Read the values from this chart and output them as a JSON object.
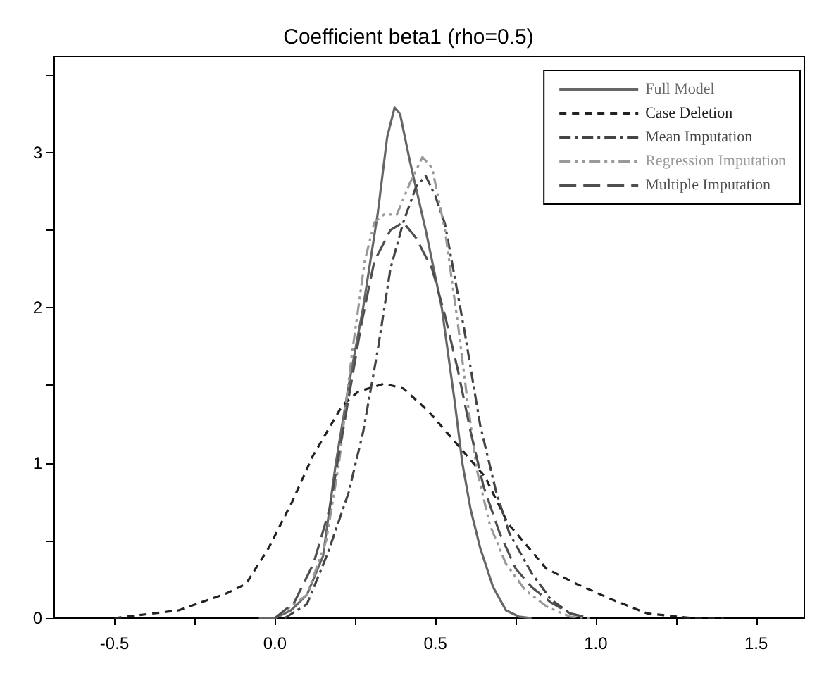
{
  "chart_data": {
    "type": "line",
    "title": "Coefficient beta1 (rho=0.5)",
    "legend": "top right",
    "grid": false,
    "marker": "none",
    "xlim": [
      -0.69,
      1.65
    ],
    "xticks": [
      -0.5,
      {
        "value": -0.25,
        "label": null
      },
      {
        "value": 0,
        "label": "0.0"
      },
      {
        "value": 0.25,
        "label": null
      },
      0.5,
      {
        "value": 0.75,
        "label": null
      },
      {
        "value": 1,
        "label": "1.0"
      },
      {
        "value": 1.25,
        "label": null
      },
      1.5
    ],
    "ylim": [
      0,
      3.62
    ],
    "yticks": [
      0,
      {
        "value": 0.5,
        "label": null
      },
      1,
      {
        "value": 1.5,
        "label": null
      },
      2,
      {
        "value": 2.5,
        "label": null
      },
      3,
      {
        "value": 3.5,
        "label": null
      }
    ],
    "series": [
      {
        "name": "Full Model",
        "color": "#666666",
        "line_style": "solid",
        "x": [
          -0.05,
          0.0,
          0.05,
          0.1,
          0.15,
          0.19,
          0.23,
          0.275,
          0.32,
          0.35,
          0.373,
          0.39,
          0.42,
          0.47,
          0.52,
          0.56,
          0.584,
          0.61,
          0.64,
          0.68,
          0.72,
          0.76,
          0.8
        ],
        "values": [
          0,
          0,
          0.05,
          0.15,
          0.4,
          1.0,
          1.5,
          2.0,
          2.6,
          3.1,
          3.29,
          3.25,
          2.95,
          2.5,
          2.0,
          1.4,
          1.0,
          0.7,
          0.45,
          0.2,
          0.05,
          0.01,
          0
        ]
      },
      {
        "name": "Case Deletion",
        "color": "#222222",
        "line_style": "dashed",
        "x": [
          -0.5,
          -0.3,
          -0.15,
          -0.09,
          -0.02,
          0.054,
          0.117,
          0.21,
          0.26,
          0.34,
          0.4,
          0.48,
          0.576,
          0.655,
          0.726,
          0.78,
          0.845,
          0.94,
          1.05,
          1.16,
          1.3,
          1.4
        ],
        "values": [
          0,
          0.05,
          0.16,
          0.22,
          0.45,
          0.75,
          1.04,
          1.37,
          1.46,
          1.51,
          1.48,
          1.33,
          1.1,
          0.91,
          0.61,
          0.48,
          0.32,
          0.22,
          0.12,
          0.03,
          0,
          0
        ]
      },
      {
        "name": "Mean Imputation",
        "color": "#444444",
        "line_style": "dashdot",
        "x": [
          0.03,
          0.1,
          0.165,
          0.23,
          0.275,
          0.32,
          0.36,
          0.4,
          0.44,
          0.47,
          0.5,
          0.53,
          0.59,
          0.64,
          0.69,
          0.73,
          0.8,
          0.86,
          0.92,
          0.98
        ],
        "values": [
          0,
          0.09,
          0.42,
          0.81,
          1.2,
          1.72,
          2.25,
          2.55,
          2.78,
          2.85,
          2.72,
          2.54,
          1.86,
          1.24,
          0.81,
          0.55,
          0.29,
          0.12,
          0.03,
          0
        ]
      },
      {
        "name": "Regression Imputation",
        "color": "#999999",
        "line_style": "dashdotdot",
        "x": [
          0.0,
          0.1,
          0.16,
          0.2,
          0.24,
          0.28,
          0.31,
          0.34,
          0.38,
          0.42,
          0.46,
          0.49,
          0.53,
          0.57,
          0.6,
          0.63,
          0.67,
          0.72,
          0.78,
          0.85,
          0.92,
          0.98
        ],
        "values": [
          0,
          0.15,
          0.5,
          1.0,
          1.7,
          2.3,
          2.55,
          2.6,
          2.6,
          2.8,
          2.97,
          2.9,
          2.5,
          1.9,
          1.4,
          0.95,
          0.6,
          0.35,
          0.18,
          0.07,
          0.01,
          0
        ]
      },
      {
        "name": "Multiple Imputation",
        "color": "#4f4f4f",
        "line_style": "longdash",
        "x": [
          0.0,
          0.06,
          0.12,
          0.17,
          0.22,
          0.27,
          0.31,
          0.36,
          0.4,
          0.44,
          0.49,
          0.53,
          0.57,
          0.61,
          0.65,
          0.7,
          0.75,
          0.8,
          0.86,
          0.92,
          0.98
        ],
        "values": [
          0,
          0.1,
          0.35,
          0.7,
          1.3,
          1.9,
          2.3,
          2.5,
          2.55,
          2.45,
          2.25,
          1.95,
          1.6,
          1.2,
          0.85,
          0.55,
          0.32,
          0.2,
          0.1,
          0.03,
          0
        ]
      }
    ]
  }
}
